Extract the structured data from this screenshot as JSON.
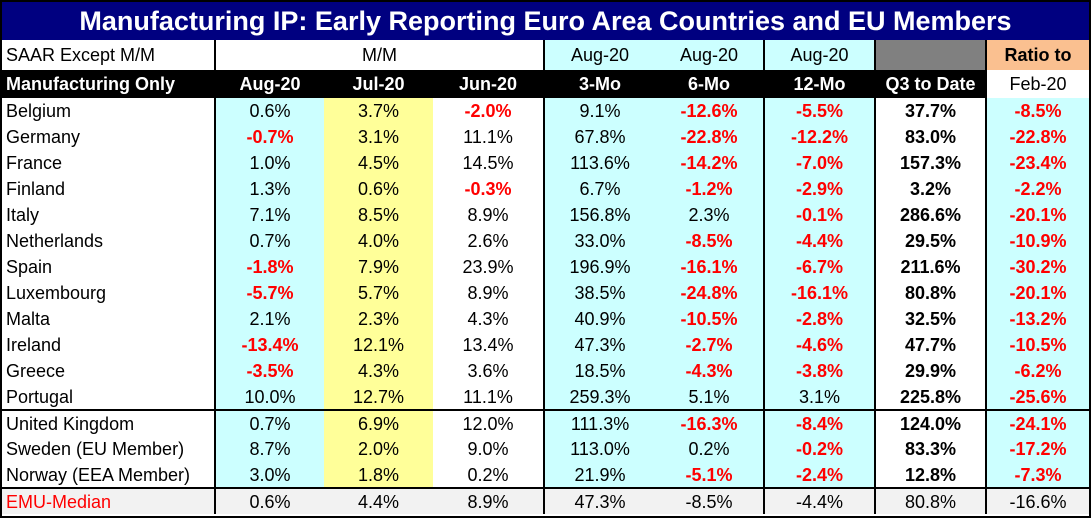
{
  "title": "Manufacturing IP: Early Reporting Euro Area Countries and EU Members",
  "header1": {
    "label": "SAAR Except M/M",
    "mm": "M/M",
    "c4": "Aug-20",
    "c5": "Aug-20",
    "c6": "Aug-20",
    "c7": "",
    "c8": "Ratio to"
  },
  "header2": {
    "label": "Manufacturing Only",
    "cols": [
      "Aug-20",
      "Jul-20",
      "Jun-20",
      "3-Mo",
      "6-Mo",
      "12-Mo",
      "Q3 to Date",
      "Feb-20"
    ]
  },
  "rows": [
    {
      "name": "Belgium",
      "values": [
        "0.6%",
        "3.7%",
        "-2.0%",
        "9.1%",
        "-12.6%",
        "-5.5%",
        "37.7%",
        "-8.5%"
      ]
    },
    {
      "name": "Germany",
      "values": [
        "-0.7%",
        "3.1%",
        "11.1%",
        "67.8%",
        "-22.8%",
        "-12.2%",
        "83.0%",
        "-22.8%"
      ]
    },
    {
      "name": "France",
      "values": [
        "1.0%",
        "4.5%",
        "14.5%",
        "113.6%",
        "-14.2%",
        "-7.0%",
        "157.3%",
        "-23.4%"
      ]
    },
    {
      "name": "Finland",
      "values": [
        "1.3%",
        "0.6%",
        "-0.3%",
        "6.7%",
        "-1.2%",
        "-2.9%",
        "3.2%",
        "-2.2%"
      ]
    },
    {
      "name": "Italy",
      "values": [
        "7.1%",
        "8.5%",
        "8.9%",
        "156.8%",
        "2.3%",
        "-0.1%",
        "286.6%",
        "-20.1%"
      ]
    },
    {
      "name": "Netherlands",
      "values": [
        "0.7%",
        "4.0%",
        "2.6%",
        "33.0%",
        "-8.5%",
        "-4.4%",
        "29.5%",
        "-10.9%"
      ]
    },
    {
      "name": "Spain",
      "values": [
        "-1.8%",
        "7.9%",
        "23.9%",
        "196.9%",
        "-16.1%",
        "-6.7%",
        "211.6%",
        "-30.2%"
      ]
    },
    {
      "name": "Luxembourg",
      "values": [
        "-5.7%",
        "5.7%",
        "8.9%",
        "38.5%",
        "-24.8%",
        "-16.1%",
        "80.8%",
        "-20.1%"
      ]
    },
    {
      "name": "Malta",
      "values": [
        "2.1%",
        "2.3%",
        "4.3%",
        "40.9%",
        "-10.5%",
        "-2.8%",
        "32.5%",
        "-13.2%"
      ]
    },
    {
      "name": "Ireland",
      "values": [
        "-13.4%",
        "12.1%",
        "13.4%",
        "47.3%",
        "-2.7%",
        "-4.6%",
        "47.7%",
        "-10.5%"
      ]
    },
    {
      "name": "Greece",
      "values": [
        "-3.5%",
        "4.3%",
        "3.6%",
        "18.5%",
        "-4.3%",
        "-3.8%",
        "29.9%",
        "-6.2%"
      ]
    },
    {
      "name": "Portugal",
      "values": [
        "10.0%",
        "12.7%",
        "11.1%",
        "259.3%",
        "5.1%",
        "3.1%",
        "225.8%",
        "-25.6%"
      ]
    },
    {
      "name": "United Kingdom",
      "values": [
        "0.7%",
        "6.9%",
        "12.0%",
        "111.3%",
        "-16.3%",
        "-8.4%",
        "124.0%",
        "-24.1%"
      ]
    },
    {
      "name": "Sweden (EU Member)",
      "values": [
        "8.7%",
        "2.0%",
        "9.0%",
        "113.0%",
        "0.2%",
        "-0.2%",
        "83.3%",
        "-17.2%"
      ]
    },
    {
      "name": "Norway (EEA Member)",
      "values": [
        "3.0%",
        "1.8%",
        "0.2%",
        "21.9%",
        "-5.1%",
        "-2.4%",
        "12.8%",
        "-7.3%"
      ]
    }
  ],
  "median": {
    "name": "EMU-Median",
    "values": [
      "0.6%",
      "4.4%",
      "8.9%",
      "47.3%",
      "-8.5%",
      "-4.4%",
      "80.8%",
      "-16.6%"
    ]
  },
  "colors": {
    "title_bg": "#000080",
    "cyan": "#ccffff",
    "yellow": "#ffff99",
    "negative": "#ff0000",
    "ratio_header": "#fac090",
    "median_bg": "#f2f2f2"
  }
}
